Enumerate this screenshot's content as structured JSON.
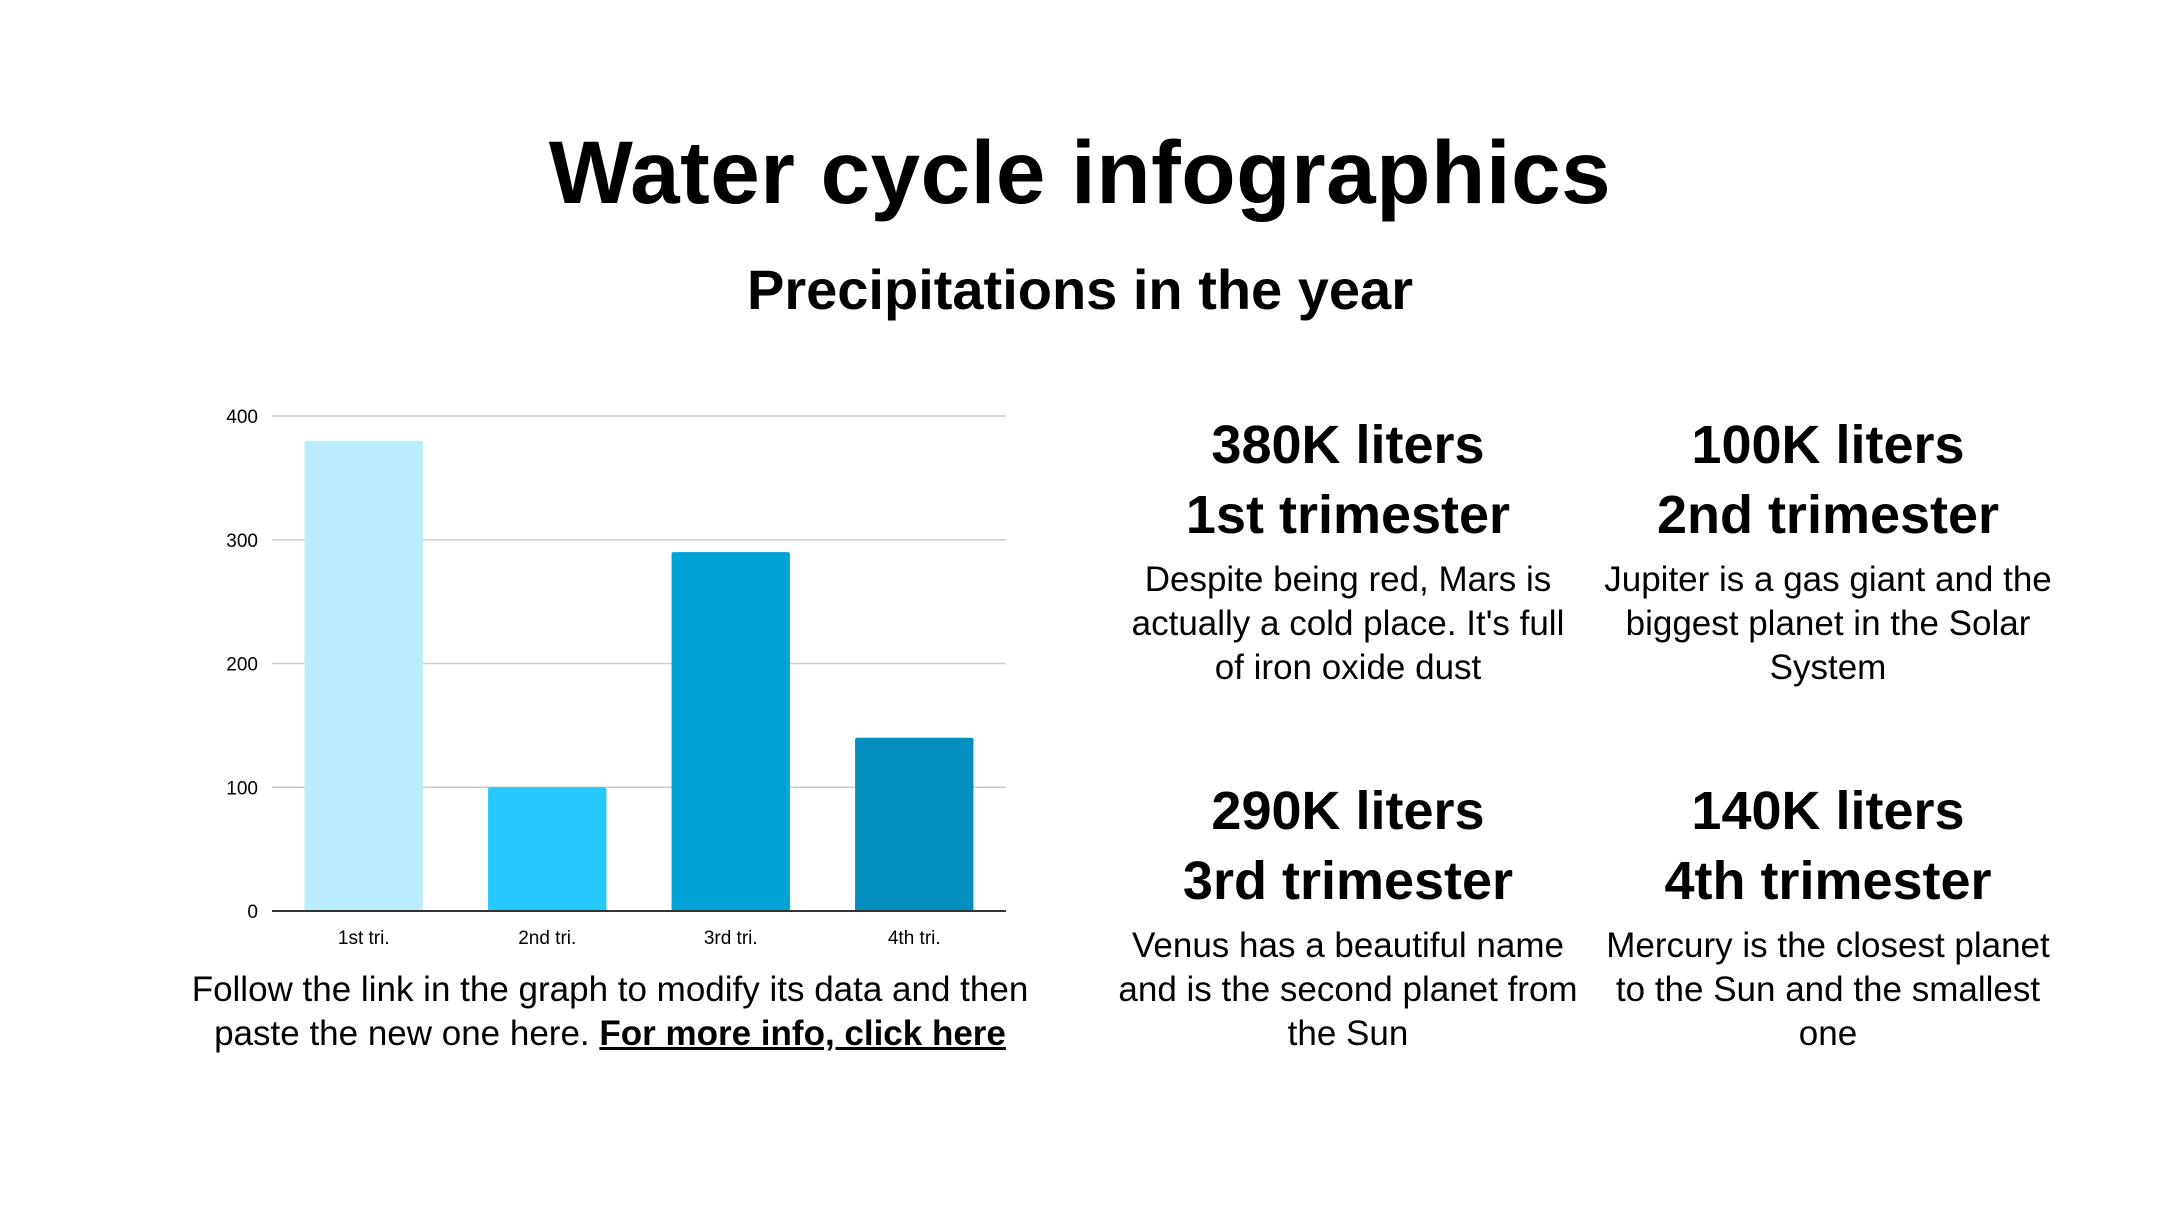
{
  "header": {
    "title": "Water cycle infographics",
    "subtitle": "Precipitations in the year"
  },
  "chart_data": {
    "type": "bar",
    "title": "",
    "xlabel": "",
    "ylabel": "",
    "categories": [
      "1st tri.",
      "2nd tri.",
      "3rd tri.",
      "4th  tri."
    ],
    "values": [
      380,
      100,
      290,
      140
    ],
    "colors": [
      "#b9ecfd",
      "#25c9fd",
      "#00a3d6",
      "#008fbf"
    ],
    "ylim": [
      0,
      400
    ],
    "yticks": [
      0,
      100,
      200,
      300,
      400
    ],
    "grid": true,
    "legend": "none"
  },
  "caption": {
    "text": "Follow the link in the graph to modify its data and then paste the new one here.",
    "link": "For more info, click here"
  },
  "stats": [
    {
      "amount": "380K liters",
      "period": "1st trimester",
      "description": "Despite being red, Mars is actually a cold place. It's full of iron oxide dust"
    },
    {
      "amount": "100K liters",
      "period": "2nd trimester",
      "description": "Jupiter is a gas giant and the biggest planet in the Solar System"
    },
    {
      "amount": "290K liters",
      "period": "3rd trimester",
      "description": "Venus has a beautiful name and is the second planet from the Sun"
    },
    {
      "amount": "140K liters",
      "period": "4th trimester",
      "description": "Mercury is the closest planet to the Sun and the smallest one"
    }
  ]
}
